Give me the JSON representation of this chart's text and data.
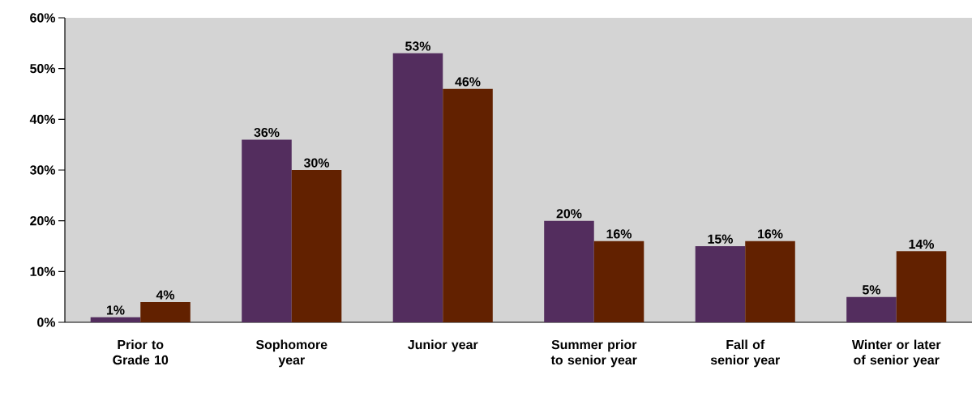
{
  "chart_data": {
    "type": "bar",
    "categories": [
      "Prior to Grade 10",
      "Sophomore year",
      "Junior year",
      "Summer prior to senior year",
      "Fall of senior year",
      "Winter or later of senior year"
    ],
    "series": [
      {
        "color": "#532d5e",
        "values": [
          1,
          36,
          53,
          20,
          15,
          5
        ],
        "value_labels": [
          "1%",
          "36%",
          "53%",
          "20%",
          "15%",
          "5%"
        ]
      },
      {
        "color": "#622100",
        "values": [
          4,
          30,
          46,
          16,
          16,
          14
        ],
        "value_labels": [
          "4%",
          "30%",
          "46%",
          "16%",
          "16%",
          "14%"
        ]
      }
    ],
    "ylim": [
      0,
      60
    ],
    "yticks": [
      {
        "value": 0,
        "label": "0%"
      },
      {
        "value": 10,
        "label": "10%"
      },
      {
        "value": 20,
        "label": "20%"
      },
      {
        "value": 30,
        "label": "30%"
      },
      {
        "value": 40,
        "label": "40%"
      },
      {
        "value": 50,
        "label": "50%"
      },
      {
        "value": 60,
        "label": "60%"
      }
    ]
  }
}
